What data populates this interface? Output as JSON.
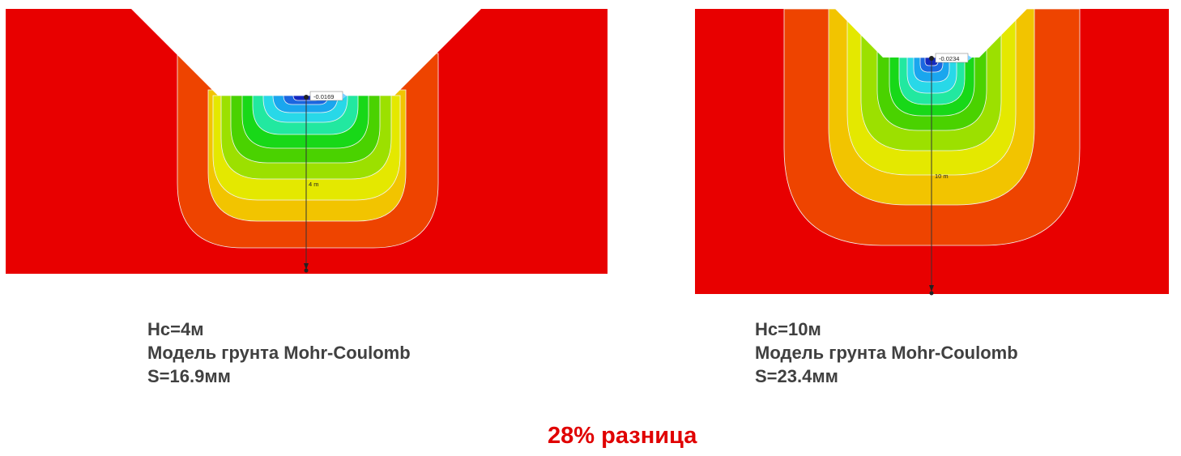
{
  "colors": {
    "background": "#ffffff",
    "soil_base": "#e80000",
    "caption_text": "#404040",
    "difference_text": "#e00000",
    "contour_bands": [
      "#ee4400",
      "#f2c400",
      "#e4e800",
      "#9ce000",
      "#4ad200",
      "#18d818",
      "#22e8a0",
      "#28d8e8",
      "#1aa6ee",
      "#1b66e0",
      "#1428c0"
    ]
  },
  "left": {
    "settlement_label": "-0.0169",
    "depth_label": "4 m",
    "caption": [
      "Нс=4м",
      "Модель грунта Mohr-Coulomb",
      "S=16.9мм"
    ]
  },
  "right": {
    "settlement_label": "-0.0234",
    "depth_label": "10 m",
    "caption": [
      "Нс=10м",
      "Модель грунта Mohr-Coulomb",
      "S=23.4мм"
    ]
  },
  "difference": "28% разница"
}
